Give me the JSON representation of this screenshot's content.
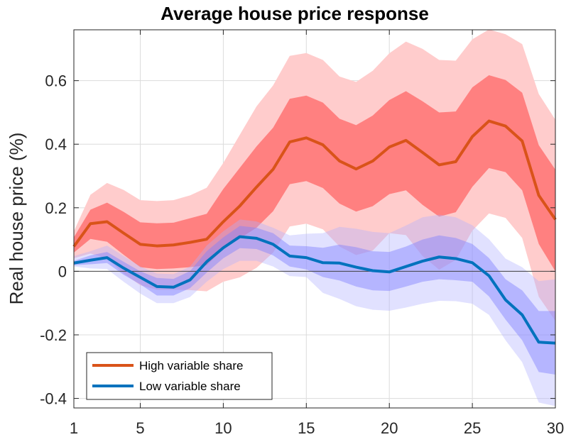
{
  "chart_data": {
    "type": "line",
    "title": "Average house price response",
    "xlabel": "",
    "ylabel": "Real house price (%)",
    "xlim": [
      1,
      30
    ],
    "ylim": [
      -0.43,
      0.76
    ],
    "xticks": [
      1,
      5,
      10,
      15,
      20,
      25,
      30
    ],
    "yticks": [
      -0.4,
      -0.2,
      0,
      0.2,
      0.4,
      0.6
    ],
    "ytick_labels": [
      "-0.4",
      "-0.2",
      "0",
      "0.2",
      "0.4",
      "0.6"
    ],
    "grid": true,
    "zero_line": true,
    "legend_position": "bottom-left",
    "x": [
      1,
      2,
      3,
      4,
      5,
      6,
      7,
      8,
      9,
      10,
      11,
      12,
      13,
      14,
      15,
      16,
      17,
      18,
      19,
      20,
      21,
      22,
      23,
      24,
      25,
      26,
      27,
      28,
      29,
      30
    ],
    "series": [
      {
        "name": "High variable share",
        "color": "#D95319",
        "inner_band_color": "#FF8080",
        "outer_band_color": "#FFCCCC",
        "values": [
          0.078,
          0.15,
          0.156,
          0.12,
          0.085,
          0.08,
          0.083,
          0.091,
          0.101,
          0.156,
          0.206,
          0.265,
          0.321,
          0.407,
          0.42,
          0.398,
          0.347,
          0.322,
          0.347,
          0.391,
          0.412,
          0.374,
          0.335,
          0.345,
          0.424,
          0.473,
          0.457,
          0.41,
          0.239,
          0.163
        ],
        "inner_upper": [
          0.107,
          0.194,
          0.216,
          0.187,
          0.154,
          0.151,
          0.153,
          0.167,
          0.181,
          0.259,
          0.326,
          0.393,
          0.452,
          0.543,
          0.553,
          0.531,
          0.48,
          0.46,
          0.49,
          0.539,
          0.567,
          0.535,
          0.5,
          0.503,
          0.579,
          0.617,
          0.602,
          0.562,
          0.397,
          0.32
        ],
        "inner_lower": [
          0.059,
          0.102,
          0.093,
          0.052,
          0.013,
          0.007,
          0.009,
          0.013,
          0.019,
          0.07,
          0.104,
          0.137,
          0.189,
          0.274,
          0.284,
          0.262,
          0.213,
          0.188,
          0.205,
          0.243,
          0.255,
          0.209,
          0.172,
          0.186,
          0.266,
          0.325,
          0.312,
          0.255,
          0.086,
          0.0
        ],
        "outer_upper": [
          0.126,
          0.241,
          0.278,
          0.256,
          0.224,
          0.221,
          0.224,
          0.239,
          0.263,
          0.341,
          0.43,
          0.519,
          0.585,
          0.678,
          0.687,
          0.665,
          0.613,
          0.596,
          0.631,
          0.686,
          0.723,
          0.7,
          0.665,
          0.663,
          0.73,
          0.761,
          0.746,
          0.715,
          0.558,
          0.477
        ],
        "outer_lower": [
          0.041,
          0.056,
          0.041,
          -0.007,
          -0.044,
          -0.058,
          -0.058,
          -0.059,
          -0.063,
          -0.033,
          -0.019,
          0.011,
          0.059,
          0.141,
          0.15,
          0.132,
          0.078,
          0.051,
          0.065,
          0.12,
          0.114,
          0.048,
          0.005,
          0.036,
          0.128,
          0.182,
          0.168,
          0.105,
          -0.08,
          -0.156
        ]
      },
      {
        "name": "Low variable share",
        "color": "#0072BD",
        "inner_band_color": "#8080FF",
        "outer_band_color": "#B0B0FF",
        "values": [
          0.026,
          0.035,
          0.043,
          0.01,
          -0.019,
          -0.048,
          -0.05,
          -0.027,
          0.03,
          0.074,
          0.109,
          0.104,
          0.085,
          0.048,
          0.043,
          0.027,
          0.026,
          0.013,
          0.002,
          -0.002,
          0.015,
          0.032,
          0.045,
          0.04,
          0.027,
          -0.014,
          -0.09,
          -0.137,
          -0.223,
          -0.226
        ],
        "inner_upper": [
          0.033,
          0.05,
          0.061,
          0.03,
          0.0,
          -0.021,
          -0.024,
          0.001,
          0.063,
          0.107,
          0.143,
          0.137,
          0.12,
          0.081,
          0.079,
          0.074,
          0.084,
          0.076,
          0.063,
          0.061,
          0.078,
          0.1,
          0.113,
          0.105,
          0.086,
          0.042,
          -0.025,
          -0.06,
          -0.125,
          -0.125
        ],
        "inner_lower": [
          0.019,
          0.022,
          0.026,
          -0.011,
          -0.041,
          -0.076,
          -0.076,
          -0.053,
          -0.004,
          0.041,
          0.073,
          0.07,
          0.05,
          0.015,
          0.006,
          -0.018,
          -0.029,
          -0.048,
          -0.06,
          -0.062,
          -0.048,
          -0.033,
          -0.025,
          -0.028,
          -0.033,
          -0.079,
          -0.152,
          -0.217,
          -0.317,
          -0.325
        ],
        "outer_upper": [
          0.048,
          0.063,
          0.081,
          0.048,
          0.015,
          -0.007,
          -0.009,
          0.015,
          0.081,
          0.126,
          0.163,
          0.157,
          0.137,
          0.113,
          0.118,
          0.12,
          0.14,
          0.134,
          0.124,
          0.12,
          0.144,
          0.17,
          0.178,
          0.17,
          0.145,
          0.101,
          0.04,
          0.013,
          -0.031,
          -0.025
        ],
        "outer_lower": [
          0.015,
          0.009,
          0.007,
          -0.033,
          -0.07,
          -0.1,
          -0.1,
          -0.081,
          -0.033,
          0.007,
          0.033,
          0.033,
          0.015,
          -0.015,
          -0.018,
          -0.068,
          -0.087,
          -0.11,
          -0.121,
          -0.124,
          -0.114,
          -0.102,
          -0.093,
          -0.094,
          -0.102,
          -0.137,
          -0.217,
          -0.286,
          -0.413,
          -0.424
        ]
      }
    ]
  }
}
